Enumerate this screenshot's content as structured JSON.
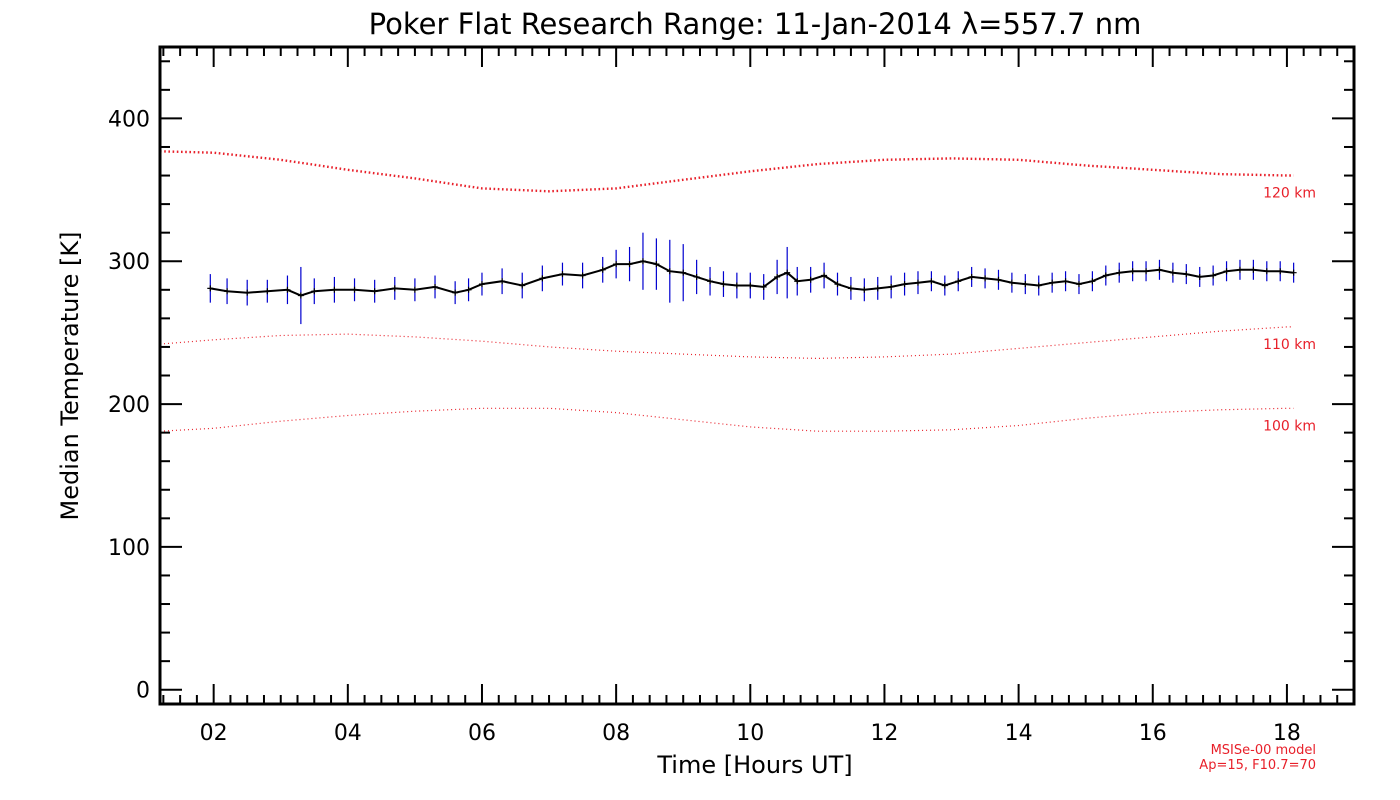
{
  "chart_data": {
    "type": "line",
    "title": "Poker Flat Research Range: 11-Jan-2014 λ=557.7 nm",
    "xlabel": "Time [Hours UT]",
    "ylabel": "Median Temperature [K]",
    "xlim": [
      1.2,
      19.0
    ],
    "ylim": [
      -10,
      450
    ],
    "x_ticks": [
      2,
      4,
      6,
      8,
      10,
      12,
      14,
      16,
      18
    ],
    "x_tick_labels": [
      "02",
      "04",
      "06",
      "08",
      "10",
      "12",
      "14",
      "16",
      "18"
    ],
    "y_ticks": [
      0,
      100,
      200,
      300,
      400
    ],
    "y_tick_labels": [
      "0",
      "100",
      "200",
      "300",
      "400"
    ],
    "grid": false,
    "measurement": {
      "color": "#000000",
      "error_color": "#0000d0",
      "x": [
        1.95,
        2.2,
        2.5,
        2.8,
        3.1,
        3.3,
        3.5,
        3.8,
        4.1,
        4.4,
        4.7,
        5.0,
        5.3,
        5.6,
        5.8,
        6.0,
        6.3,
        6.6,
        6.9,
        7.2,
        7.5,
        7.8,
        8.0,
        8.2,
        8.4,
        8.6,
        8.8,
        9.0,
        9.2,
        9.4,
        9.6,
        9.8,
        10.0,
        10.2,
        10.4,
        10.55,
        10.7,
        10.9,
        11.1,
        11.3,
        11.5,
        11.7,
        11.9,
        12.1,
        12.3,
        12.5,
        12.7,
        12.9,
        13.1,
        13.3,
        13.5,
        13.7,
        13.9,
        14.1,
        14.3,
        14.5,
        14.7,
        14.9,
        15.1,
        15.3,
        15.5,
        15.7,
        15.9,
        16.1,
        16.3,
        16.5,
        16.7,
        16.9,
        17.1,
        17.3,
        17.5,
        17.7,
        17.9,
        18.1
      ],
      "y": [
        281,
        279,
        278,
        279,
        280,
        276,
        279,
        280,
        280,
        279,
        281,
        280,
        282,
        278,
        280,
        284,
        286,
        283,
        288,
        291,
        290,
        294,
        298,
        298,
        300,
        298,
        293,
        292,
        289,
        286,
        284,
        283,
        283,
        282,
        289,
        292,
        286,
        287,
        290,
        284,
        281,
        280,
        281,
        282,
        284,
        285,
        286,
        283,
        286,
        289,
        288,
        287,
        285,
        284,
        283,
        285,
        286,
        284,
        286,
        290,
        292,
        293,
        293,
        294,
        292,
        291,
        289,
        290,
        293,
        294,
        294,
        293,
        293,
        292
      ],
      "err": [
        10,
        9,
        9,
        8,
        10,
        20,
        9,
        9,
        8,
        8,
        8,
        8,
        8,
        8,
        8,
        8,
        9,
        9,
        9,
        8,
        9,
        9,
        10,
        12,
        20,
        18,
        22,
        20,
        12,
        10,
        9,
        9,
        9,
        9,
        12,
        18,
        10,
        9,
        9,
        8,
        8,
        8,
        8,
        8,
        8,
        8,
        7,
        7,
        7,
        7,
        7,
        7,
        7,
        7,
        7,
        7,
        7,
        7,
        7,
        7,
        7,
        7,
        7,
        7,
        7,
        7,
        7,
        7,
        7,
        7,
        7,
        7,
        7,
        7
      ]
    },
    "model_series": [
      {
        "name": "120 km",
        "color": "#e8202a",
        "style": "dotted-thick",
        "x": [
          1.2,
          2.0,
          3.0,
          4.0,
          5.0,
          6.0,
          7.0,
          8.0,
          9.0,
          10.0,
          11.0,
          12.0,
          13.0,
          14.0,
          15.0,
          16.0,
          17.0,
          18.0,
          18.1
        ],
        "y": [
          377,
          376,
          371,
          364,
          358,
          351,
          349,
          351,
          357,
          363,
          368,
          371,
          372,
          371,
          367,
          364,
          361,
          360,
          360
        ]
      },
      {
        "name": "110 km",
        "color": "#e8202a",
        "style": "dotted-thin",
        "x": [
          1.2,
          2.0,
          3.0,
          4.0,
          5.0,
          6.0,
          7.0,
          8.0,
          9.0,
          10.0,
          11.0,
          12.0,
          13.0,
          14.0,
          15.0,
          16.0,
          17.0,
          18.0,
          18.1
        ],
        "y": [
          242,
          245,
          248,
          249,
          247,
          244,
          240,
          237,
          235,
          233,
          232,
          233,
          235,
          239,
          243,
          247,
          251,
          254,
          254
        ]
      },
      {
        "name": "100 km",
        "color": "#e8202a",
        "style": "dotted-thin",
        "x": [
          1.2,
          2.0,
          3.0,
          4.0,
          5.0,
          6.0,
          7.0,
          8.0,
          9.0,
          10.0,
          11.0,
          12.0,
          13.0,
          14.0,
          15.0,
          16.0,
          17.0,
          18.0,
          18.1
        ],
        "y": [
          181,
          183,
          188,
          192,
          195,
          197,
          197,
          194,
          189,
          184,
          181,
          181,
          182,
          185,
          190,
          194,
          196,
          197,
          197
        ]
      }
    ],
    "annotation": {
      "line1": "MSISe-00 model",
      "line2": "Ap=15, F10.7=70"
    }
  }
}
